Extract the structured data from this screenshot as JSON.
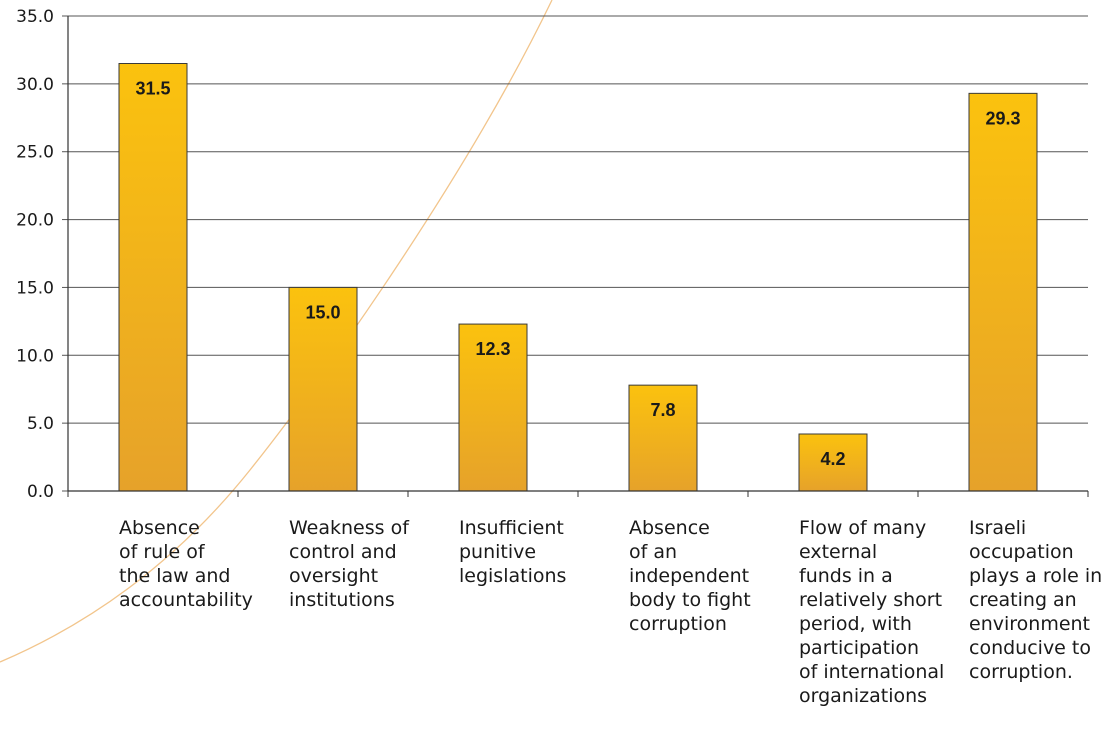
{
  "chart_data": {
    "type": "bar",
    "categories": [
      "Absence\nof rule of\nthe law and\naccountability",
      "Weakness of\ncontrol and\noversight\ninstitutions",
      "Insufficient\npunitive\nlegislations",
      "Absence\nof an\nindependent\nbody to fight\ncorruption",
      "Flow of many\nexternal\nfunds in a\nrelatively short\nperiod, with\nparticipation\nof international\norganizations",
      "Israeli\noccupation\nplays a role in\ncreating an\nenvironment\nconducive to\ncorruption."
    ],
    "values": [
      31.5,
      15.0,
      12.3,
      7.8,
      4.2,
      29.3
    ],
    "value_labels": [
      "31.5",
      "15.0",
      "12.3",
      "7.8",
      "4.2",
      "29.3"
    ],
    "yticks": [
      "0.0",
      "5.0",
      "10.0",
      "15.0",
      "20.0",
      "25.0",
      "30.0",
      "35.0"
    ],
    "ylim": [
      0,
      35
    ],
    "grid": true,
    "colors": {
      "bar_top": "#FBC20E",
      "bar_bottom": "#E6A22A",
      "bar_border": "#3a3a3a",
      "grid": "#555555",
      "arc": "#F2C58C"
    }
  }
}
